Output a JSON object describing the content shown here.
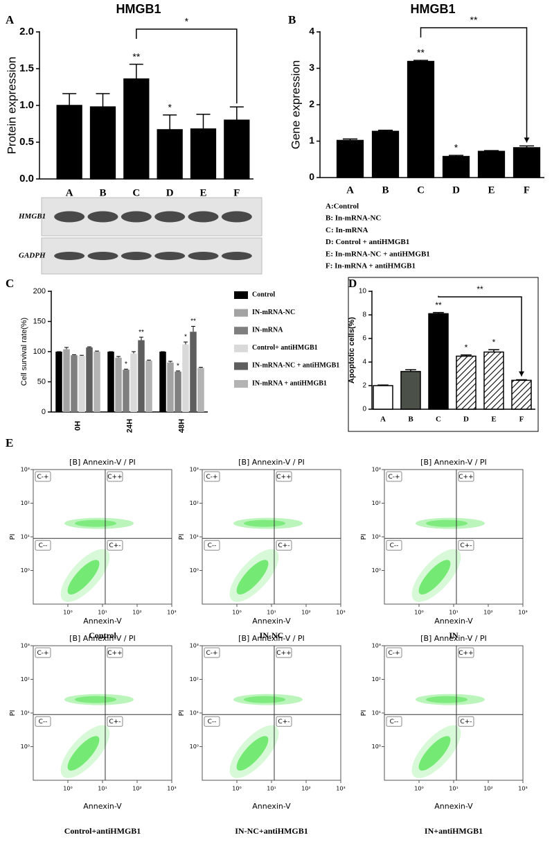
{
  "chart_data": [
    {
      "type": "bar",
      "panel": "A",
      "title": "HMGB1",
      "ylabel": "Protein expression",
      "categories": [
        "A",
        "B",
        "C",
        "D",
        "E",
        "F"
      ],
      "values": [
        1.0,
        0.98,
        1.36,
        0.67,
        0.68,
        0.8
      ],
      "errors": [
        0.16,
        0.18,
        0.2,
        0.2,
        0.2,
        0.18
      ],
      "color": "#000000",
      "significance": [
        null,
        null,
        "**",
        "*",
        null,
        null
      ],
      "bracket": {
        "categories": [
          "C",
          "F"
        ],
        "label": "*"
      },
      "ylim": [
        0,
        2
      ],
      "yticks": [
        {
          "value": 0,
          "label": "0.0"
        },
        {
          "value": 0.5,
          "label": "0.5"
        },
        {
          "value": 1,
          "label": "1.0"
        },
        {
          "value": 1.5,
          "label": "1.5"
        },
        {
          "value": 2,
          "label": "2.0"
        }
      ],
      "blot_rows": [
        "HMGB1",
        "GADPH"
      ]
    },
    {
      "type": "bar",
      "panel": "B",
      "title": "HMGB1",
      "ylabel": "Gene expression",
      "categories": [
        "A",
        "B",
        "C",
        "D",
        "E",
        "F"
      ],
      "values": [
        1.02,
        1.27,
        3.19,
        0.58,
        0.72,
        0.82
      ],
      "errors": [
        0.04,
        0.03,
        0.03,
        0.03,
        0.02,
        0.05
      ],
      "color": "#000000",
      "significance": [
        null,
        null,
        "**",
        "*",
        null,
        null
      ],
      "bracket": {
        "categories": [
          "C",
          "F"
        ],
        "label": "**"
      },
      "ylim": [
        0,
        4
      ],
      "yticks": [
        0,
        1,
        2,
        3,
        4
      ],
      "notes": [
        "A:Control",
        "B: In-mRNA-NC",
        "C: In-mRNA",
        "D: Control + antiHMGB1",
        "E: In-mRNA-NC + antiHMGB1",
        "F: In-mRNA + antiHMGB1"
      ]
    },
    {
      "type": "grouped_bar",
      "panel": "C",
      "ylabel": "Cell survival rate(%)",
      "categories": [
        "0H",
        "24H",
        "48H"
      ],
      "ylim": [
        0,
        200
      ],
      "yticks": [
        0,
        50,
        100,
        150,
        200
      ],
      "series": [
        {
          "name": "Control",
          "color": "#000000",
          "values": [
            100,
            100,
            100
          ],
          "errors": [
            0,
            0,
            0
          ],
          "significance": [
            null,
            null,
            null
          ]
        },
        {
          "name": "IN-mRNA-NC",
          "color": "#a3a3a3",
          "values": [
            104,
            90,
            82
          ],
          "errors": [
            3,
            2,
            2
          ],
          "significance": [
            null,
            null,
            null
          ]
        },
        {
          "name": "IN-mRNA",
          "color": "#7f7f7f",
          "values": [
            94,
            70,
            67
          ],
          "errors": [
            1,
            1,
            1
          ],
          "significance": [
            null,
            "*",
            "*"
          ]
        },
        {
          "name": "Control+ antiHMGB1",
          "color": "#d9d9d9",
          "values": [
            93,
            97,
            112
          ],
          "errors": [
            1,
            3,
            4
          ],
          "significance": [
            null,
            null,
            "*"
          ]
        },
        {
          "name": "IN-mRNA-NC + antiHMGB1",
          "color": "#5e5e5e",
          "values": [
            107,
            119,
            133
          ],
          "errors": [
            1,
            5,
            9
          ],
          "significance": [
            null,
            "**",
            "**"
          ]
        },
        {
          "name": "IN-mRNA + antiHMGB1",
          "color": "#b3b3b3",
          "values": [
            100,
            85,
            73
          ],
          "errors": [
            1,
            1,
            1
          ],
          "significance": [
            null,
            null,
            null
          ]
        }
      ]
    },
    {
      "type": "bar",
      "panel": "D",
      "ylabel": "Apoptotic cells(%)",
      "categories": [
        "A",
        "B",
        "C",
        "D",
        "E",
        "F"
      ],
      "values": [
        2.0,
        3.2,
        8.1,
        4.5,
        4.85,
        2.45
      ],
      "errors": [
        0.05,
        0.15,
        0.1,
        0.1,
        0.2,
        0.05
      ],
      "colors": [
        "#ffffff",
        "#4b5048",
        "#000000",
        "#ffffff",
        "#ffffff",
        "#ffffff"
      ],
      "hatched": [
        false,
        false,
        false,
        true,
        true,
        true
      ],
      "significance": [
        null,
        null,
        "**",
        "*",
        "*",
        null
      ],
      "bracket": {
        "categories": [
          "C",
          "F"
        ],
        "label": "**"
      },
      "ylim": [
        0,
        10
      ],
      "yticks": [
        0,
        2,
        4,
        6,
        8,
        10
      ],
      "frame": true
    },
    {
      "type": "scatter",
      "panel": "E",
      "title": "[B] Annexin-V / PI",
      "xlabel": "Annexin-V",
      "ylabel": "PI",
      "caption": "Control",
      "log": true,
      "color": "#22dd22",
      "xlim": [
        0.1,
        1000
      ],
      "ylim": [
        0.1,
        1000
      ],
      "gate": {
        "x": 12,
        "y": 9
      },
      "quadrants": [
        "C-+",
        "C++",
        "C--",
        "C+-"
      ],
      "xticks": [
        {
          "value": 1,
          "label": "10⁰"
        },
        {
          "value": 10,
          "label": "10¹"
        },
        {
          "value": 100,
          "label": "10²"
        },
        {
          "value": 1000,
          "label": "10³"
        }
      ],
      "yticks": [
        {
          "value": 1,
          "label": "10⁰"
        },
        {
          "value": 10,
          "label": "10¹"
        },
        {
          "value": 100,
          "label": "10²"
        },
        {
          "value": 1000,
          "label": "10³"
        }
      ]
    },
    {
      "type": "scatter",
      "title": "[B] Annexin-V / PI",
      "xlabel": "Annexin-V",
      "ylabel": "PI",
      "caption": "IN-NC",
      "log": true,
      "color": "#22dd22",
      "xlim": [
        0.1,
        1000
      ],
      "ylim": [
        0.1,
        1000
      ],
      "gate": {
        "x": 12,
        "y": 9
      },
      "quadrants": [
        "C-+",
        "C++",
        "C--",
        "C+-"
      ],
      "xticks": [
        {
          "value": 1,
          "label": "10⁰"
        },
        {
          "value": 10,
          "label": "10¹"
        },
        {
          "value": 100,
          "label": "10²"
        },
        {
          "value": 1000,
          "label": "10³"
        }
      ],
      "yticks": [
        {
          "value": 1,
          "label": "10⁰"
        },
        {
          "value": 10,
          "label": "10¹"
        },
        {
          "value": 100,
          "label": "10²"
        },
        {
          "value": 1000,
          "label": "10³"
        }
      ]
    },
    {
      "type": "scatter",
      "title": "[B] Annexin-V / PI",
      "xlabel": "Annexin-V",
      "ylabel": "PI",
      "caption": "IN",
      "log": true,
      "color": "#22dd22",
      "xlim": [
        0.1,
        1000
      ],
      "ylim": [
        0.1,
        1000
      ],
      "gate": {
        "x": 12,
        "y": 9
      },
      "quadrants": [
        "C-+",
        "C++",
        "C--",
        "C+-"
      ],
      "xticks": [
        {
          "value": 1,
          "label": "10⁰"
        },
        {
          "value": 10,
          "label": "10¹"
        },
        {
          "value": 100,
          "label": "10²"
        },
        {
          "value": 1000,
          "label": "10³"
        }
      ],
      "yticks": [
        {
          "value": 1,
          "label": "10⁰"
        },
        {
          "value": 10,
          "label": "10¹"
        },
        {
          "value": 100,
          "label": "10²"
        },
        {
          "value": 1000,
          "label": "10³"
        }
      ]
    },
    {
      "type": "scatter",
      "title": "[B] Annexin-V / PI",
      "xlabel": "Annexin-V",
      "ylabel": "PI",
      "caption": "Control+antiHMGB1",
      "log": true,
      "color": "#22dd22",
      "xlim": [
        0.1,
        1000
      ],
      "ylim": [
        0.1,
        1000
      ],
      "gate": {
        "x": 12,
        "y": 9
      },
      "quadrants": [
        "C-+",
        "C++",
        "C--",
        "C+-"
      ],
      "xticks": [
        {
          "value": 1,
          "label": "10⁰"
        },
        {
          "value": 10,
          "label": "10¹"
        },
        {
          "value": 100,
          "label": "10²"
        },
        {
          "value": 1000,
          "label": "10³"
        }
      ],
      "yticks": [
        {
          "value": 1,
          "label": "10⁰"
        },
        {
          "value": 10,
          "label": "10¹"
        },
        {
          "value": 100,
          "label": "10²"
        },
        {
          "value": 1000,
          "label": "10³"
        }
      ]
    },
    {
      "type": "scatter",
      "title": "[B] Annexin-V / PI",
      "xlabel": "Annexin-V",
      "ylabel": "PI",
      "caption": "IN-NC+antiHMGB1",
      "log": true,
      "color": "#22dd22",
      "xlim": [
        0.1,
        1000
      ],
      "ylim": [
        0.1,
        1000
      ],
      "gate": {
        "x": 12,
        "y": 9
      },
      "quadrants": [
        "C-+",
        "C++",
        "C--",
        "C+-"
      ],
      "xticks": [
        {
          "value": 1,
          "label": "10⁰"
        },
        {
          "value": 10,
          "label": "10¹"
        },
        {
          "value": 100,
          "label": "10²"
        },
        {
          "value": 1000,
          "label": "10³"
        }
      ],
      "yticks": [
        {
          "value": 1,
          "label": "10⁰"
        },
        {
          "value": 10,
          "label": "10¹"
        },
        {
          "value": 100,
          "label": "10²"
        },
        {
          "value": 1000,
          "label": "10³"
        }
      ]
    },
    {
      "type": "scatter",
      "title": "[B] Annexin-V / PI",
      "xlabel": "Annexin-V",
      "ylabel": "PI",
      "caption": "IN+antiHMGB1",
      "log": true,
      "color": "#22dd22",
      "xlim": [
        0.1,
        1000
      ],
      "ylim": [
        0.1,
        1000
      ],
      "gate": {
        "x": 12,
        "y": 9
      },
      "quadrants": [
        "C-+",
        "C++",
        "C--",
        "C+-"
      ],
      "xticks": [
        {
          "value": 1,
          "label": "10⁰"
        },
        {
          "value": 10,
          "label": "10¹"
        },
        {
          "value": 100,
          "label": "10²"
        },
        {
          "value": 1000,
          "label": "10³"
        }
      ],
      "yticks": [
        {
          "value": 1,
          "label": "10⁰"
        },
        {
          "value": 10,
          "label": "10¹"
        },
        {
          "value": 100,
          "label": "10²"
        },
        {
          "value": 1000,
          "label": "10³"
        }
      ]
    }
  ]
}
